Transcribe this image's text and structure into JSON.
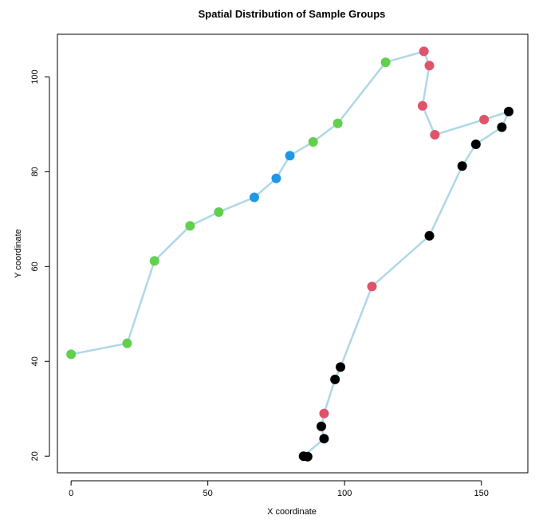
{
  "chart_data": {
    "type": "scatter",
    "title": "Spatial Distribution of Sample Groups",
    "xlabel": "X coordinate",
    "ylabel": "Y coordinate",
    "xlim": [
      -5,
      167
    ],
    "ylim": [
      16.5,
      109
    ],
    "xticks": [
      0,
      50,
      100,
      150
    ],
    "yticks": [
      20,
      40,
      60,
      80,
      100
    ],
    "grid": false,
    "legend": "none",
    "colors": {
      "line": "#add8e6",
      "green": "#61d04f",
      "blue": "#2297e6",
      "red": "#df536b",
      "black": "#000000"
    },
    "path": [
      {
        "x": 0,
        "y": 41.5,
        "group": "green"
      },
      {
        "x": 20.5,
        "y": 43.8,
        "group": "green"
      },
      {
        "x": 30.5,
        "y": 61.2,
        "group": "green"
      },
      {
        "x": 43.5,
        "y": 68.6,
        "group": "green"
      },
      {
        "x": 54,
        "y": 71.5,
        "group": "green"
      },
      {
        "x": 67,
        "y": 74.6,
        "group": "blue"
      },
      {
        "x": 75,
        "y": 78.6,
        "group": "blue"
      },
      {
        "x": 80,
        "y": 83.4,
        "group": "blue"
      },
      {
        "x": 88.5,
        "y": 86.3,
        "group": "green"
      },
      {
        "x": 97.5,
        "y": 90.2,
        "group": "green"
      },
      {
        "x": 115,
        "y": 103.1,
        "group": "green"
      },
      {
        "x": 129,
        "y": 105.4,
        "group": "red"
      },
      {
        "x": 131,
        "y": 102.4,
        "group": "red"
      },
      {
        "x": 128.5,
        "y": 93.9,
        "group": "red"
      },
      {
        "x": 133,
        "y": 87.8,
        "group": "red"
      },
      {
        "x": 151,
        "y": 91.0,
        "group": "red"
      },
      {
        "x": 160,
        "y": 92.7,
        "group": "black"
      },
      {
        "x": 157.5,
        "y": 89.4,
        "group": "black"
      },
      {
        "x": 148,
        "y": 85.8,
        "group": "black"
      },
      {
        "x": 143,
        "y": 81.2,
        "group": "black"
      },
      {
        "x": 131,
        "y": 66.5,
        "group": "black"
      },
      {
        "x": 110,
        "y": 55.8,
        "group": "red"
      },
      {
        "x": 98.5,
        "y": 38.8,
        "group": "black"
      },
      {
        "x": 96.5,
        "y": 36.2,
        "group": "black"
      },
      {
        "x": 92.5,
        "y": 29.0,
        "group": "red"
      },
      {
        "x": 91.5,
        "y": 26.3,
        "group": "black"
      },
      {
        "x": 92.5,
        "y": 23.7,
        "group": "black"
      },
      {
        "x": 85,
        "y": 20.0,
        "group": "black"
      },
      {
        "x": 86.5,
        "y": 19.9,
        "group": "black"
      }
    ]
  }
}
